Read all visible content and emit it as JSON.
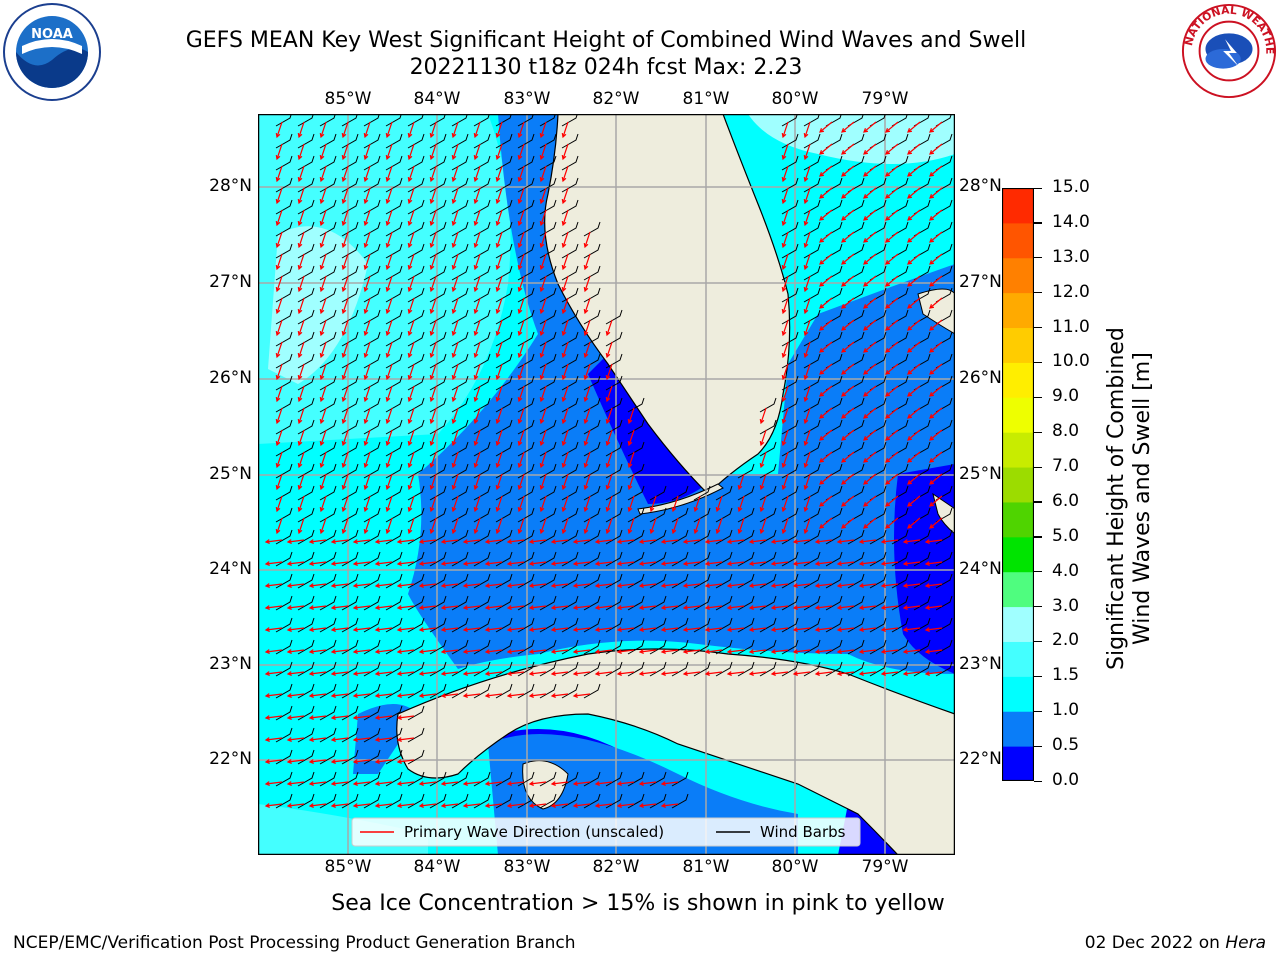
{
  "title": {
    "line1": "GEFS MEAN Key West Significant Height of Combined Wind Waves and Swell",
    "line2": "20221130 t18z 024h fcst   Max: 2.23"
  },
  "map": {
    "lon_labels": [
      "85°W",
      "84°W",
      "83°W",
      "82°W",
      "81°W",
      "80°W",
      "79°W"
    ],
    "lat_labels": [
      "28°N",
      "27°N",
      "26°N",
      "25°N",
      "24°N",
      "23°N",
      "22°N"
    ],
    "legend": {
      "wave_label": "Primary Wave Direction (unscaled)",
      "barb_label": "Wind Barbs",
      "wave_color": "#ff0000",
      "barb_color": "#000000"
    },
    "land_color": "#eeeddd"
  },
  "colorbar": {
    "label": "Significant Height of Combined\nWind Waves and Swell [m]",
    "label_line1": "Significant Height of Combined",
    "label_line2": "Wind Waves and Swell [m]",
    "ticks": [
      "0.0",
      "0.5",
      "1.0",
      "1.5",
      "2.0",
      "3.0",
      "4.0",
      "5.0",
      "6.0",
      "7.0",
      "8.0",
      "9.0",
      "10.0",
      "11.0",
      "12.0",
      "13.0",
      "14.0",
      "15.0"
    ],
    "colors": [
      "#0000ff",
      "#0a7df8",
      "#00ffff",
      "#44ffff",
      "#a0ffff",
      "#4ffd7f",
      "#00e400",
      "#4fd400",
      "#9cdc00",
      "#c8ec00",
      "#eeff00",
      "#ffee00",
      "#ffcc00",
      "#ffaa00",
      "#ff8000",
      "#ff5500",
      "#ff2a00"
    ]
  },
  "sea_ice_note": "Sea Ice Concentration > 15% is shown in pink to yellow",
  "footer": {
    "left": "NCEP/EMC/Verification Post Processing Product Generation Branch",
    "right_prefix": "02 Dec 2022 on ",
    "right_host": "Hera"
  },
  "logos": {
    "noaa_text": "NOAA",
    "nws_text": "NATIONAL WEATHER SERVICE"
  }
}
